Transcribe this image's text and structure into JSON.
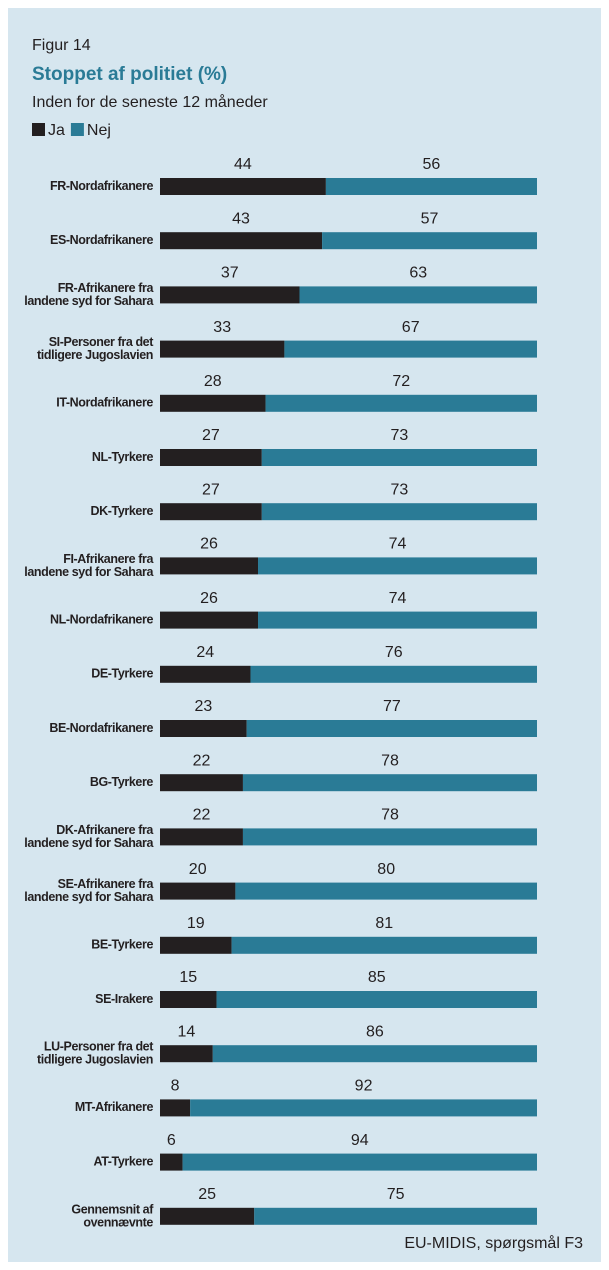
{
  "chart_data": {
    "type": "stacked_barh",
    "subtitle_top": "Figur 14",
    "title": "Stoppet af politiet (%)",
    "subtitle": "Inden for de seneste 12 måneder",
    "source": "EU-MIDIS, spørgsmål F3",
    "categories": [
      "FR-Nordafrikanere",
      "ES-Nordafrikanere",
      "FR-Afrikanere fra landene syd for Sahara",
      "SI-Personer fra det tidligere Jugoslavien",
      "IT-Nordafrikanere",
      "NL-Tyrkere",
      "DK-Tyrkere",
      "FI-Afrikanere fra landene syd for Sahara",
      "NL-Nordafrikanere",
      "DE-Tyrkere",
      "BE-Nordafrikanere",
      "BG-Tyrkere",
      "DK-Afrikanere fra landene syd for Sahara",
      "SE-Afrikanere fra landene syd for Sahara",
      "BE-Tyrkere",
      "SE-Irakere",
      "LU-Personer fra det tidligere Jugoslavien",
      "MT-Afrikanere",
      "AT-Tyrkere",
      "Gennemsnit af ovennævnte"
    ],
    "series": [
      {
        "name": "Ja",
        "color": "#231f20",
        "values": [
          44,
          43,
          37,
          33,
          28,
          27,
          27,
          26,
          26,
          24,
          23,
          22,
          22,
          20,
          19,
          15,
          14,
          8,
          6,
          25
        ]
      },
      {
        "name": "Nej",
        "color": "#2a7b96",
        "values": [
          56,
          57,
          63,
          67,
          72,
          73,
          73,
          74,
          74,
          76,
          77,
          78,
          78,
          80,
          81,
          85,
          86,
          92,
          94,
          75
        ]
      }
    ],
    "legend": "top-left"
  }
}
